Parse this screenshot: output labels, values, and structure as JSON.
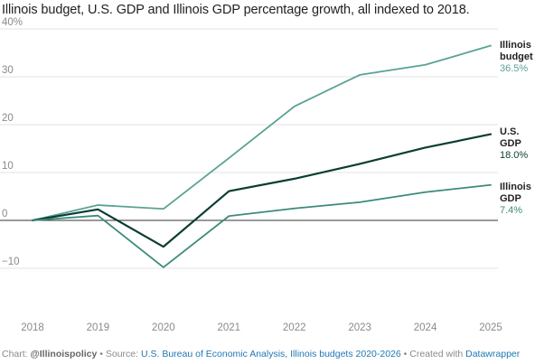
{
  "chart_data": {
    "type": "line",
    "title": "Illinois budget, U.S. GDP and Illinois GDP percentage growth, all indexed to 2018.",
    "x": [
      "2018",
      "2019",
      "2020",
      "2021",
      "2022",
      "2023",
      "2024",
      "2025"
    ],
    "ylim": [
      -15,
      40
    ],
    "yticks": [
      {
        "value": 40,
        "label": "40%"
      },
      {
        "value": 30,
        "label": "30"
      },
      {
        "value": 20,
        "label": "20"
      },
      {
        "value": 10,
        "label": "10"
      },
      {
        "value": 0,
        "label": "0"
      },
      {
        "value": -10,
        "label": "−10"
      }
    ],
    "grid": true,
    "series": [
      {
        "name_lines": [
          "Illinois",
          "budget"
        ],
        "end_label": "36.5%",
        "color": "#5aa294",
        "values": [
          0,
          3.2,
          2.4,
          13.0,
          23.8,
          30.4,
          32.5,
          36.5
        ]
      },
      {
        "name_lines": [
          "U.S.",
          "GDP"
        ],
        "end_label": "18.0%",
        "color": "#0b3d33",
        "values": [
          0,
          2.3,
          -5.5,
          6.1,
          8.7,
          11.8,
          15.2,
          18.0
        ]
      },
      {
        "name_lines": [
          "Illinois",
          "GDP"
        ],
        "end_label": "7.4%",
        "color": "#3d8a7b",
        "values": [
          0,
          1.0,
          -9.8,
          0.9,
          2.5,
          3.8,
          5.9,
          7.4
        ]
      }
    ]
  },
  "footer": {
    "prefix": "Chart: ",
    "handle": "@Illinoispolicy",
    "sep1": " • Source: ",
    "source": "U.S. Bureau of Economic Analysis, Illinois budgets 2020-2026",
    "sep2": " • Created with ",
    "tool": "Datawrapper"
  }
}
